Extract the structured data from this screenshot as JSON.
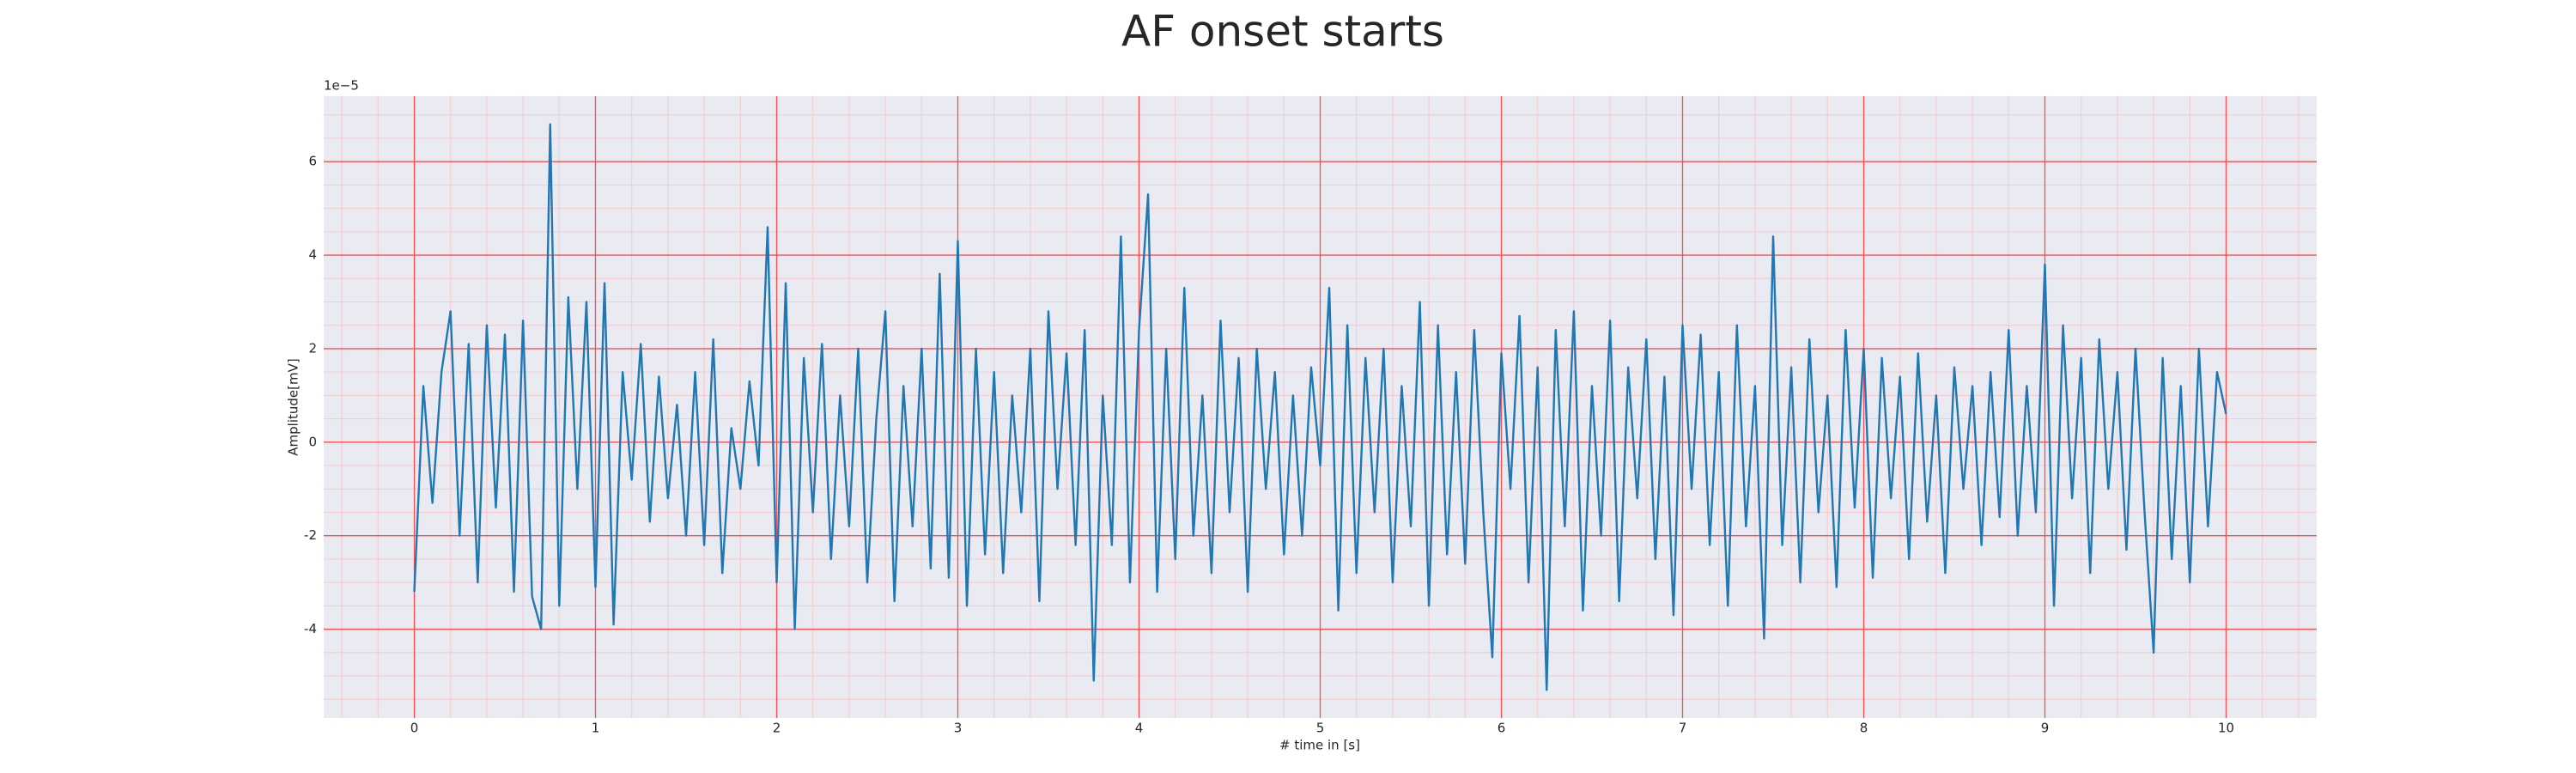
{
  "chart_data": {
    "type": "line",
    "title": "AF onset starts",
    "xlabel": "# time in [s]",
    "ylabel": "Amplitude[mV]",
    "y_offset_label": "1e−5",
    "color": "#1f77b4",
    "grid": true,
    "xlim": [
      -0.5,
      10.5
    ],
    "ylim": [
      -5.9,
      7.4
    ],
    "xticks": [
      0,
      1,
      2,
      3,
      4,
      5,
      6,
      7,
      8,
      9,
      10
    ],
    "yticks": [
      -4,
      -2,
      0,
      2,
      4,
      6
    ],
    "xminorticks": [
      -0.4,
      -0.2,
      0.2,
      0.4,
      0.6,
      0.8,
      1.2,
      1.4,
      1.6,
      1.8,
      2.2,
      2.4,
      2.6,
      2.8,
      3.2,
      3.4,
      3.6,
      3.8,
      4.2,
      4.4,
      4.6,
      4.8,
      5.2,
      5.4,
      5.6,
      5.8,
      6.2,
      6.4,
      6.6,
      6.8,
      7.2,
      7.4,
      7.6,
      7.8,
      8.2,
      8.4,
      8.6,
      8.8,
      9.2,
      9.4,
      9.6,
      9.8,
      10.2,
      10.4
    ],
    "yminorticks": [
      -5.5,
      -5,
      -4.5,
      -3.5,
      -3,
      -2.5,
      -1.5,
      -1,
      -0.5,
      0.5,
      1,
      1.5,
      2.5,
      3,
      3.5,
      4.5,
      5,
      5.5,
      6.5,
      7
    ],
    "x": [
      0,
      0.05,
      0.1,
      0.15,
      0.2,
      0.25,
      0.3,
      0.35,
      0.4,
      0.45,
      0.5,
      0.55,
      0.6,
      0.65,
      0.7,
      0.75,
      0.8,
      0.85,
      0.9,
      0.95,
      1,
      1.05,
      1.1,
      1.15,
      1.2,
      1.25,
      1.3,
      1.35,
      1.4,
      1.45,
      1.5,
      1.55,
      1.6,
      1.65,
      1.7,
      1.75,
      1.8,
      1.85,
      1.9,
      1.95,
      2,
      2.05,
      2.1,
      2.15,
      2.2,
      2.25,
      2.3,
      2.35,
      2.4,
      2.45,
      2.5,
      2.55,
      2.6,
      2.65,
      2.7,
      2.75,
      2.8,
      2.85,
      2.9,
      2.95,
      3,
      3.05,
      3.1,
      3.15,
      3.2,
      3.25,
      3.3,
      3.35,
      3.4,
      3.45,
      3.5,
      3.55,
      3.6,
      3.65,
      3.7,
      3.75,
      3.8,
      3.85,
      3.9,
      3.95,
      4,
      4.05,
      4.1,
      4.15,
      4.2,
      4.25,
      4.3,
      4.35,
      4.4,
      4.45,
      4.5,
      4.55,
      4.6,
      4.65,
      4.7,
      4.75,
      4.8,
      4.85,
      4.9,
      4.95,
      5,
      5.05,
      5.1,
      5.15,
      5.2,
      5.25,
      5.3,
      5.35,
      5.4,
      5.45,
      5.5,
      5.55,
      5.6,
      5.65,
      5.7,
      5.75,
      5.8,
      5.85,
      5.9,
      5.95,
      6,
      6.05,
      6.1,
      6.15,
      6.2,
      6.25,
      6.3,
      6.35,
      6.4,
      6.45,
      6.5,
      6.55,
      6.6,
      6.65,
      6.7,
      6.75,
      6.8,
      6.85,
      6.9,
      6.95,
      7,
      7.05,
      7.1,
      7.15,
      7.2,
      7.25,
      7.3,
      7.35,
      7.4,
      7.45,
      7.5,
      7.55,
      7.6,
      7.65,
      7.7,
      7.75,
      7.8,
      7.85,
      7.9,
      7.95,
      8,
      8.05,
      8.1,
      8.15,
      8.2,
      8.25,
      8.3,
      8.35,
      8.4,
      8.45,
      8.5,
      8.55,
      8.6,
      8.65,
      8.7,
      8.75,
      8.8,
      8.85,
      8.9,
      8.95,
      9,
      9.05,
      9.1,
      9.15,
      9.2,
      9.25,
      9.3,
      9.35,
      9.4,
      9.45,
      9.5,
      9.55,
      9.6,
      9.65,
      9.7,
      9.75,
      9.8,
      9.85,
      9.9,
      9.95,
      10
    ],
    "values": [
      -3.2,
      1.2,
      -1.3,
      1.5,
      2.8,
      -2.0,
      2.1,
      -3.0,
      2.5,
      -1.4,
      2.3,
      -3.2,
      2.6,
      -3.3,
      -4.0,
      6.8,
      -3.5,
      3.1,
      -1.0,
      3.0,
      -3.1,
      3.4,
      -3.9,
      1.5,
      -0.8,
      2.1,
      -1.7,
      1.4,
      -1.2,
      0.8,
      -2.0,
      1.5,
      -2.2,
      2.2,
      -2.8,
      0.3,
      -1.0,
      1.3,
      -0.5,
      4.6,
      -3.0,
      3.4,
      -4.0,
      1.8,
      -1.5,
      2.1,
      -2.5,
      1.0,
      -1.8,
      2.0,
      -3.0,
      0.5,
      2.8,
      -3.4,
      1.2,
      -1.8,
      2.0,
      -2.7,
      3.6,
      -2.9,
      4.3,
      -3.5,
      2.0,
      -2.4,
      1.5,
      -2.8,
      1.0,
      -1.5,
      2.0,
      -3.4,
      2.8,
      -1.0,
      1.9,
      -2.2,
      2.4,
      -5.1,
      1.0,
      -2.2,
      4.4,
      -3.0,
      2.4,
      5.3,
      -3.2,
      2.0,
      -2.5,
      3.3,
      -2.0,
      1.0,
      -2.8,
      2.6,
      -1.5,
      1.8,
      -3.2,
      2.0,
      -1.0,
      1.5,
      -2.4,
      1.0,
      -2.0,
      1.6,
      -0.5,
      3.3,
      -3.6,
      2.5,
      -2.8,
      1.8,
      -1.5,
      2.0,
      -3.0,
      1.2,
      -1.8,
      3.0,
      -3.5,
      2.5,
      -2.4,
      1.5,
      -2.6,
      2.4,
      -1.5,
      -4.6,
      1.9,
      -1.0,
      2.7,
      -3.0,
      1.6,
      -5.3,
      2.4,
      -1.8,
      2.8,
      -3.6,
      1.2,
      -2.0,
      2.6,
      -3.4,
      1.6,
      -1.2,
      2.2,
      -2.5,
      1.4,
      -3.7,
      2.5,
      -1.0,
      2.3,
      -2.2,
      1.5,
      -3.5,
      2.5,
      -1.8,
      1.2,
      -4.2,
      4.4,
      -2.2,
      1.6,
      -3.0,
      2.2,
      -1.5,
      1.0,
      -3.1,
      2.4,
      -1.4,
      2.0,
      -2.9,
      1.8,
      -1.2,
      1.4,
      -2.5,
      1.9,
      -1.7,
      1.0,
      -2.8,
      1.6,
      -1.0,
      1.2,
      -2.2,
      1.5,
      -1.6,
      2.4,
      -2.0,
      1.2,
      -1.5,
      3.8,
      -3.5,
      2.5,
      -1.2,
      1.8,
      -2.8,
      2.2,
      -1.0,
      1.5,
      -2.3,
      2.0,
      -1.5,
      -4.5,
      1.8,
      -2.5,
      1.2,
      -3.0,
      2.0,
      -1.8,
      1.5,
      0.6
    ]
  }
}
